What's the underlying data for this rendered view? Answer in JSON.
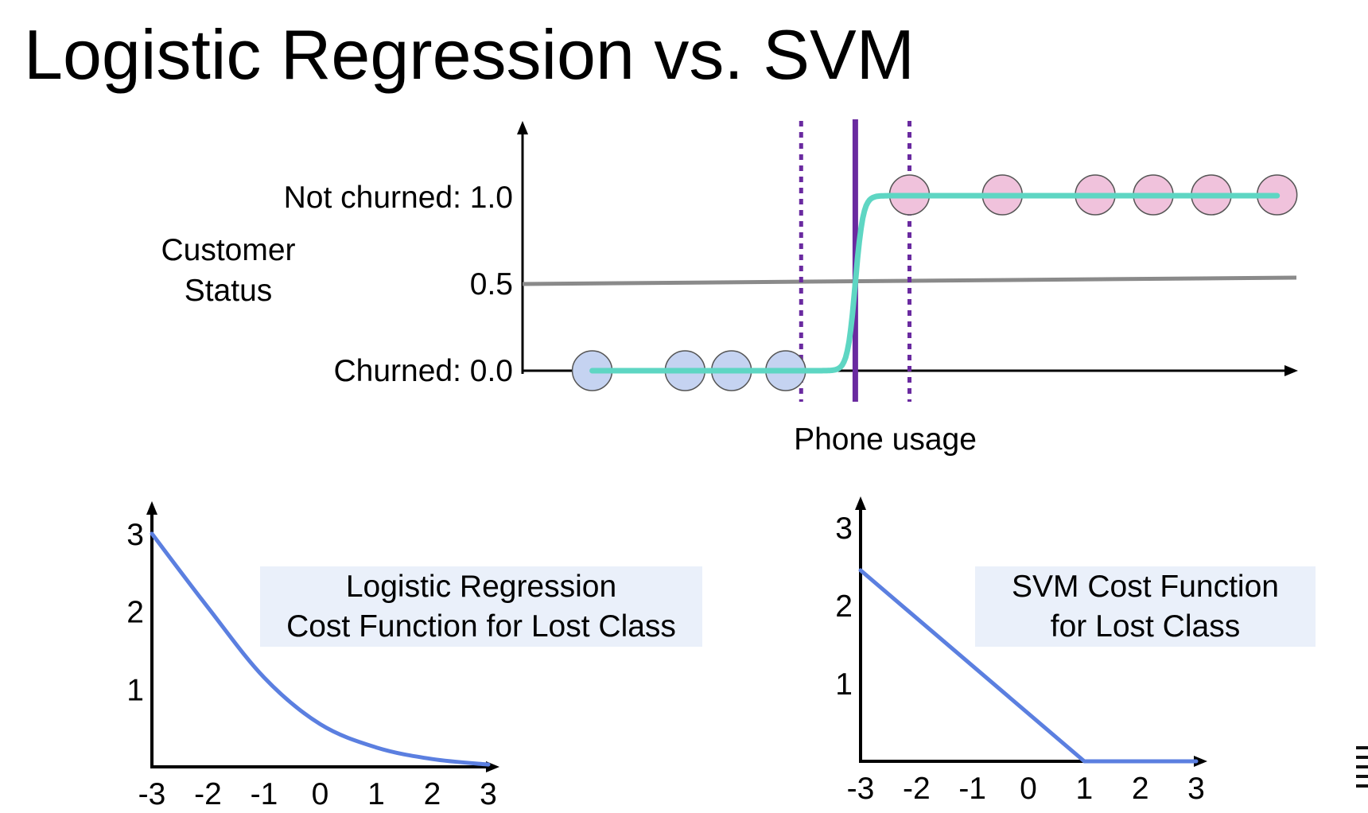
{
  "slide": {
    "title": "Logistic Regression vs. SVM"
  },
  "chart_data": [
    {
      "type": "scatter",
      "xlabel": "Phone usage",
      "ylabel": "Customer Status",
      "ylabel_lines": [
        "Customer",
        "Status"
      ],
      "y_ticks": [
        {
          "value": 1.0,
          "label": "Not churned: 1.0"
        },
        {
          "value": 0.5,
          "label": "0.5"
        },
        {
          "value": 0.0,
          "label": "Churned: 0.0"
        }
      ],
      "points_churned": [
        0.9,
        2.1,
        2.7,
        3.4
      ],
      "points_not_churned": [
        5.0,
        6.2,
        7.4,
        8.15,
        8.9,
        9.75
      ],
      "sigmoid": {
        "center": 4.3,
        "steepness": 20,
        "color": "#5ed6c3"
      },
      "threshold_line": {
        "y": 0.5,
        "color": "#8a8a8a"
      },
      "decision_boundary": {
        "x": 4.3,
        "color": "#6a2aa0"
      },
      "margins": {
        "x": [
          3.6,
          5.0
        ],
        "color": "#6a2aa0"
      },
      "colors": {
        "churned": "#c5d3f1",
        "not_churned": "#f0c2dc",
        "marker_edge": "#555555"
      }
    },
    {
      "type": "line",
      "title_lines": [
        "Logistic Regression",
        "Cost Function for Lost Class"
      ],
      "x_ticks": [
        "-3",
        "-2",
        "-1",
        "0",
        "1",
        "2",
        "3"
      ],
      "y_ticks": [
        "1",
        "2",
        "3"
      ],
      "xlim": [
        -3,
        3
      ],
      "ylim": [
        0,
        3
      ],
      "x": [
        -3,
        -2,
        -1,
        0,
        1,
        2,
        3
      ],
      "y": [
        3.0,
        2.05,
        1.15,
        0.55,
        0.25,
        0.1,
        0.03
      ],
      "color": "#5b7fe0",
      "label_bg": "#eaf0fa"
    },
    {
      "type": "line",
      "title_lines": [
        "SVM Cost Function",
        "for Lost Class"
      ],
      "x_ticks": [
        "-3",
        "-2",
        "-1",
        "0",
        "1",
        "2",
        "3"
      ],
      "y_ticks": [
        "3",
        "2",
        "1"
      ],
      "xlim": [
        -3,
        3
      ],
      "ylim": [
        0,
        3
      ],
      "x": [
        -3,
        1,
        3
      ],
      "y": [
        2.45,
        0,
        0
      ],
      "color": "#5b7fe0",
      "label_bg": "#eaf0fa"
    }
  ]
}
